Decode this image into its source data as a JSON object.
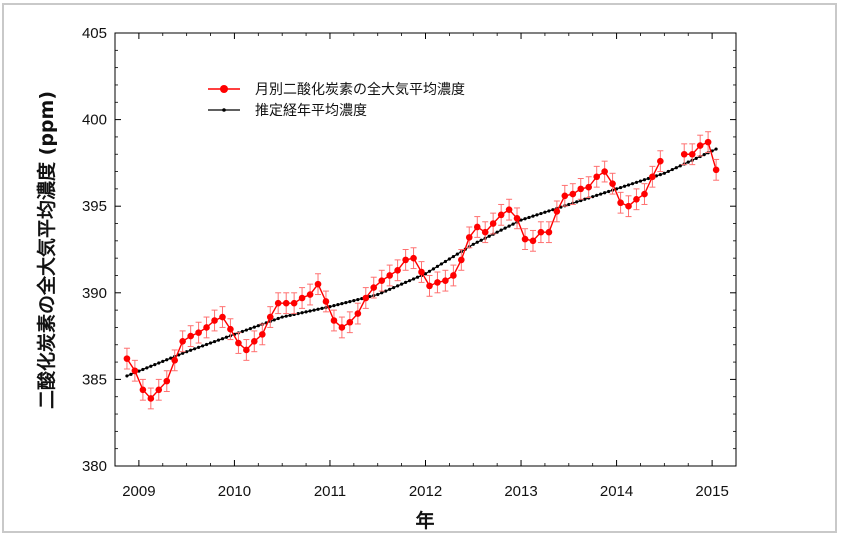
{
  "chart_data": {
    "type": "line",
    "title": "",
    "xlabel": "年",
    "ylabel": "二酸化炭素の全大気平均濃度 (ppm)",
    "ylim": [
      380,
      405
    ],
    "yticks": [
      380,
      385,
      390,
      395,
      400,
      405
    ],
    "xlim": [
      2008.75,
      2015.25
    ],
    "xticks": [
      2009,
      2010,
      2011,
      2012,
      2013,
      2014,
      2015
    ],
    "xtick_labels": [
      "2009",
      "2010",
      "2011",
      "2012",
      "2013",
      "2014",
      "2015"
    ],
    "grid": false,
    "legend_position": "top-left",
    "series": [
      {
        "name": "月別二酸化炭素の全大気平均濃度",
        "color": "#ff0000",
        "marker": "circle",
        "error_bar": 0.6,
        "x": [
          2008.875,
          2008.958,
          2009.042,
          2009.125,
          2009.208,
          2009.292,
          2009.375,
          2009.458,
          2009.542,
          2009.625,
          2009.708,
          2009.792,
          2009.875,
          2009.958,
          2010.042,
          2010.125,
          2010.208,
          2010.292,
          2010.375,
          2010.458,
          2010.542,
          2010.625,
          2010.708,
          2010.792,
          2010.875,
          2010.958,
          2011.042,
          2011.125,
          2011.208,
          2011.292,
          2011.375,
          2011.458,
          2011.542,
          2011.625,
          2011.708,
          2011.792,
          2011.875,
          2011.958,
          2012.042,
          2012.125,
          2012.208,
          2012.292,
          2012.375,
          2012.458,
          2012.542,
          2012.625,
          2012.708,
          2012.792,
          2012.875,
          2012.958,
          2013.042,
          2013.125,
          2013.208,
          2013.292,
          2013.375,
          2013.458,
          2013.542,
          2013.625,
          2013.708,
          2013.792,
          2013.875,
          2013.958,
          2014.042,
          2014.125,
          2014.208,
          2014.292,
          2014.375,
          2014.458,
          2014.708,
          2014.792,
          2014.875,
          2014.958,
          2015.042
        ],
        "y": [
          386.2,
          385.5,
          384.4,
          383.9,
          384.4,
          384.9,
          386.1,
          387.2,
          387.5,
          387.7,
          388.0,
          388.4,
          388.6,
          387.9,
          387.1,
          386.7,
          387.2,
          387.6,
          388.6,
          389.4,
          389.4,
          389.4,
          389.7,
          389.9,
          390.5,
          389.5,
          388.4,
          388.0,
          388.3,
          388.8,
          389.7,
          390.3,
          390.7,
          391.0,
          391.3,
          391.9,
          392.0,
          391.2,
          390.4,
          390.6,
          390.7,
          391.0,
          391.9,
          393.2,
          393.8,
          393.5,
          394.0,
          394.5,
          394.8,
          394.3,
          393.1,
          393.0,
          393.5,
          393.5,
          394.7,
          395.6,
          395.7,
          396.0,
          396.1,
          396.7,
          397.0,
          396.3,
          395.2,
          395.0,
          395.4,
          395.7,
          396.7,
          397.6,
          398.0,
          398.0,
          398.5,
          398.7,
          397.1
        ]
      },
      {
        "name": "推定経年平均濃度",
        "color": "#000000",
        "marker": "small-dot",
        "x_start": 2008.875,
        "x_step": 0.041667,
        "y_points": [
          [
            2008.875,
            385.2
          ],
          [
            2009.5,
            386.6
          ],
          [
            2010.0,
            387.6
          ],
          [
            2010.5,
            388.6
          ],
          [
            2011.0,
            389.2
          ],
          [
            2011.5,
            389.9
          ],
          [
            2012.0,
            391.1
          ],
          [
            2012.5,
            392.8
          ],
          [
            2013.0,
            394.2
          ],
          [
            2013.5,
            395.1
          ],
          [
            2014.0,
            396.0
          ],
          [
            2014.5,
            396.9
          ],
          [
            2015.042,
            398.3
          ]
        ]
      }
    ]
  }
}
